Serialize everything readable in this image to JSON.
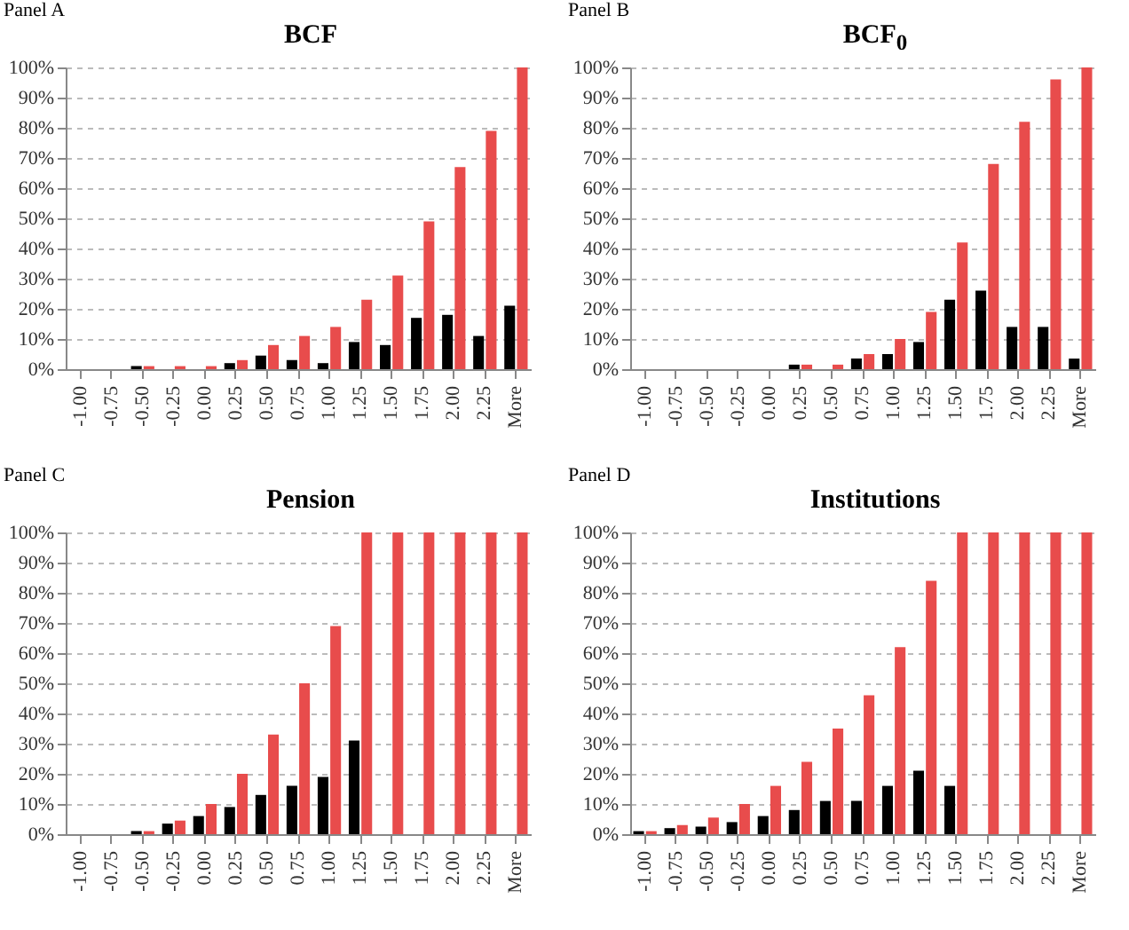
{
  "chart_data": [
    {
      "type": "bar",
      "title": "BCF",
      "annotations": [
        "Panel A"
      ],
      "categories": [
        "-1.00",
        "-0.75",
        "-0.50",
        "-0.25",
        "0.00",
        "0.25",
        "0.50",
        "0.75",
        "1.00",
        "1.25",
        "1.50",
        "1.75",
        "2.00",
        "2.25",
        "More"
      ],
      "series": [
        {
          "color": "#000000",
          "values": [
            0,
            0,
            1,
            0,
            0,
            2,
            4.5,
            3,
            2,
            9,
            8,
            17,
            18,
            11,
            21
          ]
        },
        {
          "color": "#e84c4c",
          "values": [
            0,
            0,
            1,
            1,
            1,
            3,
            8,
            11,
            14,
            23,
            31,
            49,
            67,
            79,
            100
          ]
        }
      ],
      "ylim": [
        0,
        100
      ],
      "yticks": [
        {
          "value": 0,
          "label": "0%"
        },
        {
          "value": 10,
          "label": "10%"
        },
        {
          "value": 20,
          "label": "20%"
        },
        {
          "value": 30,
          "label": "30%"
        },
        {
          "value": 40,
          "label": "40%"
        },
        {
          "value": 50,
          "label": "50%"
        },
        {
          "value": 60,
          "label": "60%"
        },
        {
          "value": 70,
          "label": "70%"
        },
        {
          "value": 80,
          "label": "80%"
        },
        {
          "value": 90,
          "label": "90%"
        },
        {
          "value": 100,
          "label": "100%"
        }
      ],
      "grid": "y",
      "legend": false
    },
    {
      "type": "bar",
      "title": "BCF$_{0}$",
      "annotations": [
        "Panel B"
      ],
      "categories": [
        "-1.00",
        "-0.75",
        "-0.50",
        "-0.25",
        "0.00",
        "0.25",
        "0.50",
        "0.75",
        "1.00",
        "1.25",
        "1.50",
        "1.75",
        "2.00",
        "2.25",
        "More"
      ],
      "series": [
        {
          "color": "#000000",
          "values": [
            0,
            0,
            0,
            0,
            0,
            1.5,
            0,
            3.5,
            5,
            9,
            23,
            26,
            14,
            14,
            3.5
          ]
        },
        {
          "color": "#e84c4c",
          "values": [
            0,
            0,
            0,
            0,
            0,
            1.5,
            1.5,
            5,
            10,
            19,
            42,
            68,
            82,
            96,
            100
          ]
        }
      ],
      "ylim": [
        0,
        100
      ],
      "yticks": [
        {
          "value": 0,
          "label": "0%"
        },
        {
          "value": 10,
          "label": "10%"
        },
        {
          "value": 20,
          "label": "20%"
        },
        {
          "value": 30,
          "label": "30%"
        },
        {
          "value": 40,
          "label": "40%"
        },
        {
          "value": 50,
          "label": "50%"
        },
        {
          "value": 60,
          "label": "60%"
        },
        {
          "value": 70,
          "label": "70%"
        },
        {
          "value": 80,
          "label": "80%"
        },
        {
          "value": 90,
          "label": "90%"
        },
        {
          "value": 100,
          "label": "100%"
        }
      ],
      "grid": "y",
      "legend": false
    },
    {
      "type": "bar",
      "title": "Pension",
      "annotations": [
        "Panel C"
      ],
      "categories": [
        "-1.00",
        "-0.75",
        "-0.50",
        "-0.25",
        "0.00",
        "0.25",
        "0.50",
        "0.75",
        "1.00",
        "1.25",
        "1.50",
        "1.75",
        "2.00",
        "2.25",
        "More"
      ],
      "series": [
        {
          "color": "#000000",
          "values": [
            0,
            0,
            1,
            3.5,
            6,
            9,
            13,
            16,
            19,
            31,
            0,
            0,
            0,
            0,
            0
          ]
        },
        {
          "color": "#e84c4c",
          "values": [
            0,
            0,
            1,
            4.5,
            10,
            20,
            33,
            50,
            69,
            100,
            100,
            100,
            100,
            100,
            100
          ]
        }
      ],
      "ylim": [
        0,
        100
      ],
      "yticks": [
        {
          "value": 0,
          "label": "0%"
        },
        {
          "value": 10,
          "label": "10%"
        },
        {
          "value": 20,
          "label": "20%"
        },
        {
          "value": 30,
          "label": "30%"
        },
        {
          "value": 40,
          "label": "40%"
        },
        {
          "value": 50,
          "label": "50%"
        },
        {
          "value": 60,
          "label": "60%"
        },
        {
          "value": 70,
          "label": "70%"
        },
        {
          "value": 80,
          "label": "80%"
        },
        {
          "value": 90,
          "label": "90%"
        },
        {
          "value": 100,
          "label": "100%"
        }
      ],
      "grid": "y",
      "legend": false
    },
    {
      "type": "bar",
      "title": "Institutions",
      "annotations": [
        "Panel D"
      ],
      "categories": [
        "-1.00",
        "-0.75",
        "-0.50",
        "-0.25",
        "0.00",
        "0.25",
        "0.50",
        "0.75",
        "1.00",
        "1.25",
        "1.50",
        "1.75",
        "2.00",
        "2.25",
        "More"
      ],
      "series": [
        {
          "color": "#000000",
          "values": [
            1,
            2,
            2.5,
            4,
            6,
            8,
            11,
            11,
            16,
            21,
            16,
            0,
            0,
            0,
            0
          ]
        },
        {
          "color": "#e84c4c",
          "values": [
            1,
            3,
            5.5,
            10,
            16,
            24,
            35,
            46,
            62,
            84,
            100,
            100,
            100,
            100,
            100
          ]
        }
      ],
      "ylim": [
        0,
        100
      ],
      "yticks": [
        {
          "value": 0,
          "label": "0%"
        },
        {
          "value": 10,
          "label": "10%"
        },
        {
          "value": 20,
          "label": "20%"
        },
        {
          "value": 30,
          "label": "30%"
        },
        {
          "value": 40,
          "label": "40%"
        },
        {
          "value": 50,
          "label": "50%"
        },
        {
          "value": 60,
          "label": "60%"
        },
        {
          "value": 70,
          "label": "70%"
        },
        {
          "value": 80,
          "label": "80%"
        },
        {
          "value": 90,
          "label": "90%"
        },
        {
          "value": 100,
          "label": "100%"
        }
      ],
      "grid": "y",
      "legend": false
    }
  ]
}
